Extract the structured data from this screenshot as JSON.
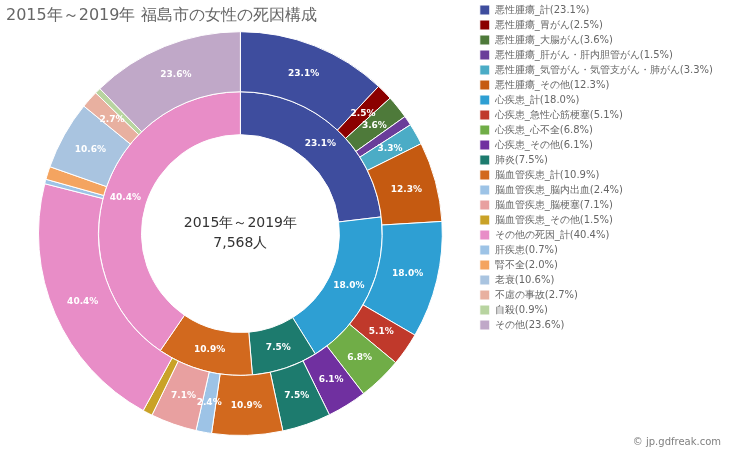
{
  "chart_data": {
    "type": "doughnut",
    "title": "2015年～2019年 福島市の女性の死因構成",
    "center_text": [
      "2015年～2019年",
      "7,568人"
    ],
    "annotations": [
      "© jp.gdfreak.com"
    ],
    "legend": "right",
    "data_labels": true,
    "series": [
      {
        "categories": [
          "悪性腫瘍_計(23.1%)",
          "悪性腫瘍_胃がん(2.5%)",
          "悪性腫瘍_大腸がん(3.6%)",
          "悪性腫瘍_肝がん・肝内胆管がん(1.5%)",
          "悪性腫瘍_気管がん・気管支がん・肺がん(3.3%)",
          "悪性腫瘍_その他(12.3%)",
          "心疾患_計(18.0%)",
          "心疾患_急性心筋梗塞(5.1%)",
          "心疾患_心不全(6.8%)",
          "心疾患_その他(6.1%)",
          "肺炎(7.5%)",
          "脳血管疾患_計(10.9%)",
          "脳血管疾患_脳内出血(2.4%)",
          "脳血管疾患_脳梗塞(7.1%)",
          "脳血管疾患_その他(1.5%)",
          "その他の死因_計(40.4%)",
          "肝疾患(0.7%)",
          "腎不全(2.0%)",
          "老衰(10.6%)",
          "不慮の事故(2.7%)",
          "自殺(0.9%)",
          "その他(23.6%)"
        ],
        "values": [
          23.1,
          2.5,
          3.6,
          1.5,
          3.3,
          12.3,
          18.0,
          5.1,
          6.8,
          6.1,
          7.5,
          10.9,
          2.4,
          7.1,
          1.5,
          40.4,
          0.7,
          2.0,
          10.6,
          2.7,
          0.9,
          23.6
        ],
        "value_labels": [
          "23.1%",
          "2.5%",
          "3.6%",
          null,
          "3.3%",
          "12.3%",
          "18.0%",
          "5.1%",
          "6.8%",
          "6.1%",
          "7.5%",
          "10.9%",
          "2.4%",
          "7.1%",
          null,
          "40.4%",
          null,
          null,
          "10.6%",
          "2.7%",
          null,
          "23.6%"
        ],
        "colors": [
          "#3e4d9e",
          "#8b0000",
          "#4e7a3a",
          "#6a3d9a",
          "#4bacc6",
          "#c55a11",
          "#2e9fd3",
          "#c0392b",
          "#70ad47",
          "#7030a0",
          "#1d7b6e",
          "#d2691e",
          "#9dc3e6",
          "#e8a0a0",
          "#c9a227",
          "#e88dc7",
          "#9dc3e6",
          "#f4a460",
          "#a9c4e0",
          "#e8b0a0",
          "#b8d4a0",
          "#c0a8c8"
        ]
      },
      {
        "values": [
          23.1,
          18.0,
          7.5,
          10.9,
          40.4
        ],
        "value_labels": [
          "23.1%",
          "18.0%",
          "7.5%",
          "10.9%",
          "40.4%"
        ],
        "colors": [
          "#3e4d9e",
          "#2e9fd3",
          "#1d7b6e",
          "#d2691e",
          "#e88dc7"
        ]
      }
    ]
  }
}
